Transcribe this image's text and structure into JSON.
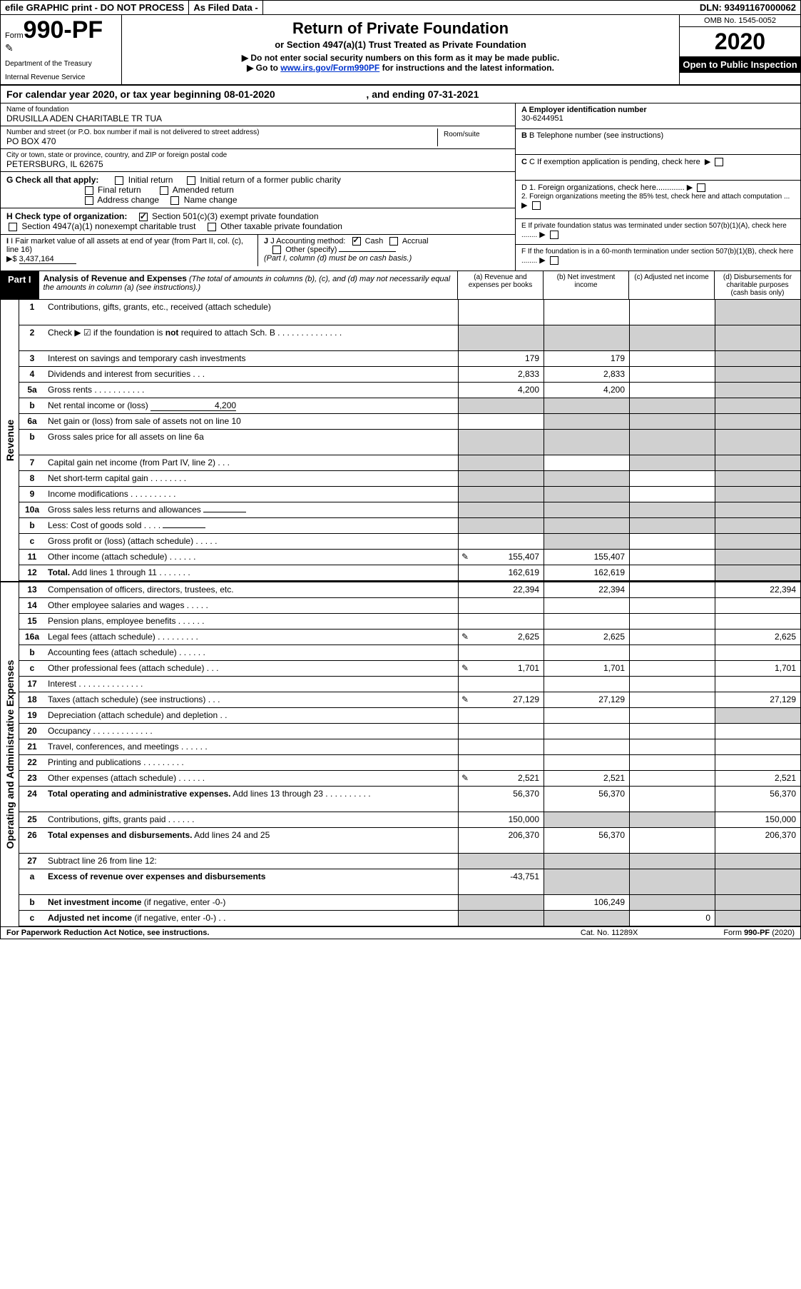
{
  "topbar": {
    "efile": "efile GRAPHIC print - DO NOT PROCESS",
    "asfiled": "As Filed Data -",
    "dln": "DLN: 93491167000062"
  },
  "header": {
    "form_prefix": "Form",
    "form_no": "990-PF",
    "dept1": "Department of the Treasury",
    "dept2": "Internal Revenue Service",
    "title": "Return of Private Foundation",
    "subtitle": "or Section 4947(a)(1) Trust Treated as Private Foundation",
    "note1": "▶ Do not enter social security numbers on this form as it may be made public.",
    "note2_pre": "▶ Go to ",
    "note2_link": "www.irs.gov/Form990PF",
    "note2_post": " for instructions and the latest information.",
    "omb": "OMB No. 1545-0052",
    "year": "2020",
    "open": "Open to Public Inspection"
  },
  "calyear": {
    "line_a": "For calendar year 2020, or tax year beginning 08-01-2020",
    "line_b": ", and ending 07-31-2021"
  },
  "foundation": {
    "name_label": "Name of foundation",
    "name": "DRUSILLA ADEN CHARITABLE TR TUA",
    "street_label": "Number and street (or P.O. box number if mail is not delivered to street address)",
    "street": "PO BOX 470",
    "room_label": "Room/suite",
    "room": "",
    "city_label": "City or town, state or province, country, and ZIP or foreign postal code",
    "city": "PETERSBURG, IL  62675"
  },
  "right": {
    "a_label": "A Employer identification number",
    "a_val": "30-6244951",
    "b_label": "B Telephone number (see instructions)",
    "b_val": "",
    "c_label": "C If exemption application is pending, check here",
    "d1": "D 1. Foreign organizations, check here.............",
    "d2": "2. Foreign organizations meeting the 85% test, check here and attach computation ...",
    "e": "E  If private foundation status was terminated under section 507(b)(1)(A), check here ........",
    "f": "F  If the foundation is in a 60-month termination under section 507(b)(1)(B), check here ........"
  },
  "g": {
    "label": "G Check all that apply:",
    "initial": "Initial return",
    "initial_former": "Initial return of a former public charity",
    "final": "Final return",
    "amended": "Amended return",
    "address": "Address change",
    "name": "Name change"
  },
  "h": {
    "label": "H Check type of organization:",
    "c3": "Section 501(c)(3) exempt private foundation",
    "c3_checked": true,
    "a1": "Section 4947(a)(1) nonexempt charitable trust",
    "other": "Other taxable private foundation"
  },
  "i": {
    "label": "I Fair market value of all assets at end of year (from Part II, col. (c), line 16)",
    "arrow": "▶$",
    "val": "3,437,164"
  },
  "j": {
    "label": "J Accounting method:",
    "cash": "Cash",
    "cash_checked": true,
    "accrual": "Accrual",
    "other": "Other (specify)",
    "note": "(Part I, column (d) must be on cash basis.)"
  },
  "part1": {
    "badge": "Part I",
    "title_b": "Analysis of Revenue and Expenses",
    "title_rest": " (The total of amounts in columns (b), (c), and (d) may not necessarily equal the amounts in column (a) (see instructions).)",
    "col_a": "(a)   Revenue and expenses per books",
    "col_b": "(b)   Net investment income",
    "col_c": "(c)   Adjusted net income",
    "col_d": "(d)   Disbursements for charitable purposes (cash basis only)"
  },
  "side": {
    "revenue": "Revenue",
    "expenses": "Operating and Administrative Expenses"
  },
  "rows": [
    {
      "n": "1",
      "label": "Contributions, gifts, grants, etc., received (attach schedule)",
      "a": "",
      "b": "",
      "c": "",
      "d": "",
      "tall": true,
      "shade_d": true
    },
    {
      "n": "2",
      "label": "Check ▶ ☑ if the foundation is <b>not</b> required to attach Sch. B  .  .  .  .  .  .  .  .  .  .  .  .  .  .",
      "a": "",
      "b": "",
      "c": "",
      "d": "",
      "tall": true,
      "shade_a": true,
      "shade_b": true,
      "shade_c": true,
      "shade_d": true
    },
    {
      "n": "3",
      "label": "Interest on savings and temporary cash investments",
      "a": "179",
      "b": "179",
      "c": "",
      "d": "",
      "shade_d": true
    },
    {
      "n": "4",
      "label": "Dividends and interest from securities   .  .  .",
      "a": "2,833",
      "b": "2,833",
      "c": "",
      "d": "",
      "shade_d": true
    },
    {
      "n": "5a",
      "label": "Gross rents    .  .  .  .  .  .  .  .  .  .  .",
      "a": "4,200",
      "b": "4,200",
      "c": "",
      "d": "",
      "shade_d": true
    },
    {
      "n": "b",
      "label": "Net rental income or (loss) <span style='display:inline-block;width:120px;border-bottom:1px solid #000;text-align:right'>4,200</span>",
      "a": "",
      "b": "",
      "c": "",
      "d": "",
      "shade_a": true,
      "shade_b": true,
      "shade_c": true,
      "shade_d": true
    },
    {
      "n": "6a",
      "label": "Net gain or (loss) from sale of assets not on line 10",
      "a": "",
      "b": "",
      "c": "",
      "d": "",
      "shade_b": true,
      "shade_c": true,
      "shade_d": true
    },
    {
      "n": "b",
      "label": "Gross sales price for all assets on line 6a",
      "a": "",
      "b": "",
      "c": "",
      "d": "",
      "shade_a": true,
      "shade_b": true,
      "shade_c": true,
      "shade_d": true,
      "tall": true
    },
    {
      "n": "7",
      "label": "Capital gain net income (from Part IV, line 2)  .  .  .",
      "a": "",
      "b": "",
      "c": "",
      "d": "",
      "shade_a": true,
      "shade_c": true,
      "shade_d": true
    },
    {
      "n": "8",
      "label": "Net short-term capital gain  .  .  .  .  .  .  .  .",
      "a": "",
      "b": "",
      "c": "",
      "d": "",
      "shade_a": true,
      "shade_b": true,
      "shade_d": true
    },
    {
      "n": "9",
      "label": "Income modifications .  .  .  .  .  .  .  .  .  .",
      "a": "",
      "b": "",
      "c": "",
      "d": "",
      "shade_a": true,
      "shade_b": true,
      "shade_d": true
    },
    {
      "n": "10a",
      "label": "Gross sales less returns and allowances <span style='display:inline-block;width:60px;border-bottom:1px solid #000;'></span>",
      "a": "",
      "b": "",
      "c": "",
      "d": "",
      "shade_a": true,
      "shade_b": true,
      "shade_c": true,
      "shade_d": true
    },
    {
      "n": "b",
      "label": "Less: Cost of goods sold   .  .  .  . <span style='display:inline-block;width:60px;border-bottom:1px solid #000;'></span>",
      "a": "",
      "b": "",
      "c": "",
      "d": "",
      "shade_a": true,
      "shade_b": true,
      "shade_c": true,
      "shade_d": true
    },
    {
      "n": "c",
      "label": "Gross profit or (loss) (attach schedule)  .  .  .  .  .",
      "a": "",
      "b": "",
      "c": "",
      "d": "",
      "shade_b": true,
      "shade_d": true
    },
    {
      "n": "11",
      "label": "Other income (attach schedule)   .  .  .  .  .  .",
      "a": "155,407",
      "b": "155,407",
      "c": "",
      "d": "",
      "icon": true,
      "shade_d": true
    },
    {
      "n": "12",
      "label": "<b>Total.</b> Add lines 1 through 11  .  .  .  .  .  .  .",
      "a": "162,619",
      "b": "162,619",
      "c": "",
      "d": "",
      "shade_d": true
    }
  ],
  "exp_rows": [
    {
      "n": "13",
      "label": "Compensation of officers, directors, trustees, etc.",
      "a": "22,394",
      "b": "22,394",
      "c": "",
      "d": "22,394"
    },
    {
      "n": "14",
      "label": "Other employee salaries and wages   .  .  .  .  .",
      "a": "",
      "b": "",
      "c": "",
      "d": ""
    },
    {
      "n": "15",
      "label": "Pension plans, employee benefits   .  .  .  .  .  .",
      "a": "",
      "b": "",
      "c": "",
      "d": ""
    },
    {
      "n": "16a",
      "label": "Legal fees (attach schedule) .  .  .  .  .  .  .  .  .",
      "a": "2,625",
      "b": "2,625",
      "c": "",
      "d": "2,625",
      "icon": true
    },
    {
      "n": "b",
      "label": "Accounting fees (attach schedule)  .  .  .  .  .  .",
      "a": "",
      "b": "",
      "c": "",
      "d": ""
    },
    {
      "n": "c",
      "label": "Other professional fees (attach schedule)   .  .  .",
      "a": "1,701",
      "b": "1,701",
      "c": "",
      "d": "1,701",
      "icon": true
    },
    {
      "n": "17",
      "label": "Interest  .  .  .  .  .  .  .  .  .  .  .  .  .  .",
      "a": "",
      "b": "",
      "c": "",
      "d": ""
    },
    {
      "n": "18",
      "label": "Taxes (attach schedule) (see instructions)   .  .  .",
      "a": "27,129",
      "b": "27,129",
      "c": "",
      "d": "27,129",
      "icon": true
    },
    {
      "n": "19",
      "label": "Depreciation (attach schedule) and depletion   .  .",
      "a": "",
      "b": "",
      "c": "",
      "d": "",
      "shade_d": true
    },
    {
      "n": "20",
      "label": "Occupancy   .  .  .  .  .  .  .  .  .  .  .  .  .",
      "a": "",
      "b": "",
      "c": "",
      "d": ""
    },
    {
      "n": "21",
      "label": "Travel, conferences, and meetings .  .  .  .  .  .",
      "a": "",
      "b": "",
      "c": "",
      "d": ""
    },
    {
      "n": "22",
      "label": "Printing and publications .  .  .  .  .  .  .  .  .",
      "a": "",
      "b": "",
      "c": "",
      "d": ""
    },
    {
      "n": "23",
      "label": "Other expenses (attach schedule)  .  .  .  .  .  .",
      "a": "2,521",
      "b": "2,521",
      "c": "",
      "d": "2,521",
      "icon": true
    },
    {
      "n": "24",
      "label": "<b>Total operating and administrative expenses.</b> Add lines 13 through 23  .  .  .  .  .  .  .  .  .  .",
      "a": "56,370",
      "b": "56,370",
      "c": "",
      "d": "56,370",
      "tall": true
    },
    {
      "n": "25",
      "label": "Contributions, gifts, grants paid   .  .  .  .  .  .",
      "a": "150,000",
      "b": "",
      "c": "",
      "d": "150,000",
      "shade_b": true,
      "shade_c": true
    },
    {
      "n": "26",
      "label": "<b>Total expenses and disbursements.</b> Add lines 24 and 25",
      "a": "206,370",
      "b": "56,370",
      "c": "",
      "d": "206,370",
      "tall": true
    },
    {
      "n": "27",
      "label": "Subtract line 26 from line 12:",
      "a": "",
      "b": "",
      "c": "",
      "d": "",
      "shade_a": true,
      "shade_b": true,
      "shade_c": true,
      "shade_d": true
    },
    {
      "n": "a",
      "label": "<b>Excess of revenue over expenses and disbursements</b>",
      "a": "-43,751",
      "b": "",
      "c": "",
      "d": "",
      "shade_b": true,
      "shade_c": true,
      "shade_d": true,
      "tall": true
    },
    {
      "n": "b",
      "label": "<b>Net investment income</b> (if negative, enter -0-)",
      "a": "",
      "b": "106,249",
      "c": "",
      "d": "",
      "shade_a": true,
      "shade_c": true,
      "shade_d": true
    },
    {
      "n": "c",
      "label": "<b>Adjusted net income</b> (if negative, enter -0-)  .  .",
      "a": "",
      "b": "",
      "c": "0",
      "d": "",
      "shade_a": true,
      "shade_b": true,
      "shade_d": true
    }
  ],
  "footer": {
    "left": "For Paperwork Reduction Act Notice, see instructions.",
    "mid": "Cat. No. 11289X",
    "right_pre": "Form ",
    "right_b": "990-PF",
    "right_post": " (2020)"
  }
}
